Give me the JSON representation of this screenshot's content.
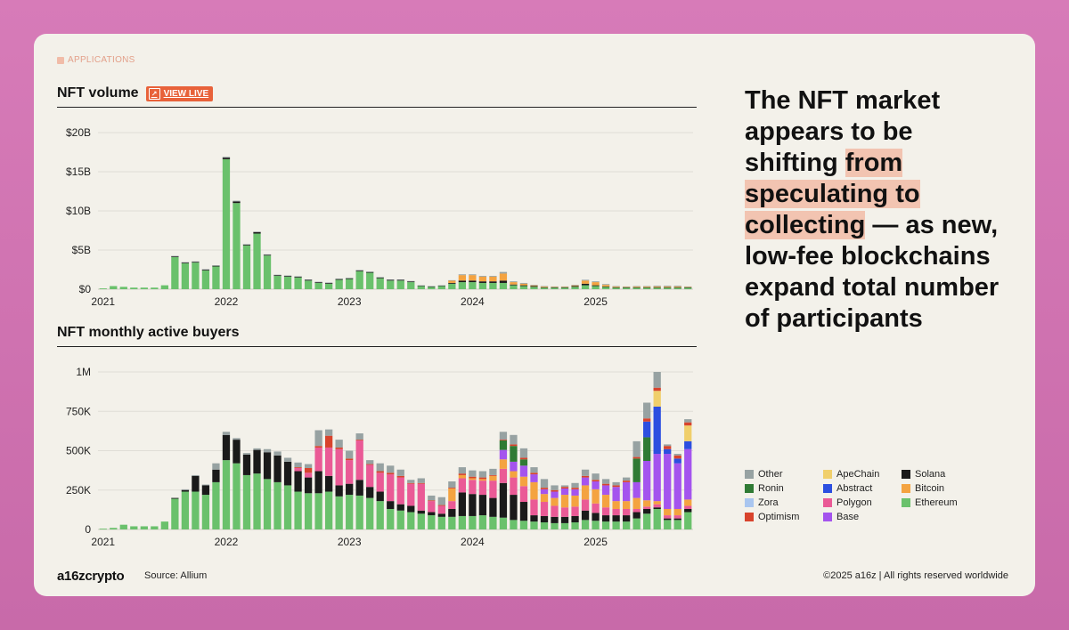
{
  "section_tag": "APPLICATIONS",
  "headline": {
    "part1": "The NFT market appears to be shifting ",
    "highlight": "from speculating to collecting",
    "part2": " — as new, low-fee blockchains expand total number of participants"
  },
  "footer": {
    "logo": "a16zcrypto",
    "source": "Source: Allium",
    "copyright": "©2025 a16z | All rights reserved worldwide"
  },
  "view_live": "VIEW LIVE",
  "legend": [
    {
      "name": "Other",
      "color": "#97a2a2"
    },
    {
      "name": "ApeChain",
      "color": "#f0cf6b"
    },
    {
      "name": "Solana",
      "color": "#1a1a1a"
    },
    {
      "name": "Ronin",
      "color": "#2f7a34"
    },
    {
      "name": "Abstract",
      "color": "#2c4fe0"
    },
    {
      "name": "Bitcoin",
      "color": "#f4a340"
    },
    {
      "name": "Zora",
      "color": "#a9c6f0"
    },
    {
      "name": "Polygon",
      "color": "#ea5a96"
    },
    {
      "name": "Ethereum",
      "color": "#6ac16c"
    },
    {
      "name": "Optimism",
      "color": "#d8432c"
    },
    {
      "name": "Base",
      "color": "#a454ee"
    }
  ],
  "chart_data": [
    {
      "type": "bar",
      "stacked": true,
      "title": "NFT volume",
      "ylabel": "",
      "yticks": [
        "$0",
        "$5B",
        "$10B",
        "$15B",
        "$20B"
      ],
      "ylim": [
        0,
        20
      ],
      "xticks": [
        "2021",
        "2022",
        "2023",
        "2024",
        "2025"
      ],
      "categories": [
        "2021-01",
        "2021-02",
        "2021-03",
        "2021-04",
        "2021-05",
        "2021-06",
        "2021-07",
        "2021-08",
        "2021-09",
        "2021-10",
        "2021-11",
        "2021-12",
        "2022-01",
        "2022-02",
        "2022-03",
        "2022-04",
        "2022-05",
        "2022-06",
        "2022-07",
        "2022-08",
        "2022-09",
        "2022-10",
        "2022-11",
        "2022-12",
        "2023-01",
        "2023-02",
        "2023-03",
        "2023-04",
        "2023-05",
        "2023-06",
        "2023-07",
        "2023-08",
        "2023-09",
        "2023-10",
        "2023-11",
        "2023-12",
        "2024-01",
        "2024-02",
        "2024-03",
        "2024-04",
        "2024-05",
        "2024-06",
        "2024-07",
        "2024-08",
        "2024-09",
        "2024-10",
        "2024-11",
        "2024-12",
        "2025-01",
        "2025-02",
        "2025-03",
        "2025-04",
        "2025-05",
        "2025-06",
        "2025-07",
        "2025-08",
        "2025-09",
        "2025-10"
      ],
      "series": [
        {
          "name": "Ethereum",
          "values": [
            0.1,
            0.4,
            0.3,
            0.2,
            0.2,
            0.2,
            0.5,
            4.1,
            3.3,
            3.4,
            2.4,
            2.9,
            16.6,
            11.0,
            5.6,
            7.1,
            4.3,
            1.7,
            1.6,
            1.5,
            1.1,
            0.8,
            0.7,
            1.2,
            1.3,
            2.3,
            2.1,
            1.4,
            1.1,
            1.1,
            0.9,
            0.4,
            0.3,
            0.4,
            0.7,
            0.9,
            0.9,
            0.8,
            0.8,
            0.8,
            0.5,
            0.4,
            0.3,
            0.2,
            0.2,
            0.2,
            0.3,
            0.5,
            0.4,
            0.3,
            0.2,
            0.2,
            0.2,
            0.2,
            0.2,
            0.2,
            0.2,
            0.2
          ]
        },
        {
          "name": "Solana",
          "values": [
            0,
            0,
            0,
            0,
            0,
            0,
            0,
            0.1,
            0.1,
            0.1,
            0.1,
            0.1,
            0.2,
            0.2,
            0.1,
            0.2,
            0.1,
            0.1,
            0.1,
            0.1,
            0.1,
            0.1,
            0.1,
            0.1,
            0.1,
            0.1,
            0.1,
            0.1,
            0.1,
            0.1,
            0.1,
            0.05,
            0.05,
            0.05,
            0.1,
            0.2,
            0.2,
            0.2,
            0.2,
            0.3,
            0.1,
            0.1,
            0.1,
            0.05,
            0.05,
            0.05,
            0.1,
            0.2,
            0.1,
            0.05,
            0.05,
            0.05,
            0.05,
            0.05,
            0.05,
            0.05,
            0.05,
            0.05
          ]
        },
        {
          "name": "Bitcoin",
          "values": [
            0,
            0,
            0,
            0,
            0,
            0,
            0,
            0,
            0,
            0,
            0,
            0,
            0,
            0,
            0,
            0,
            0,
            0,
            0,
            0,
            0,
            0,
            0,
            0,
            0,
            0,
            0,
            0,
            0,
            0,
            0,
            0,
            0,
            0,
            0.3,
            0.7,
            0.7,
            0.6,
            0.6,
            0.9,
            0.3,
            0.2,
            0.1,
            0.1,
            0.05,
            0.05,
            0.1,
            0.4,
            0.4,
            0.2,
            0.1,
            0.05,
            0.1,
            0.1,
            0.1,
            0.1,
            0.1,
            0.05
          ]
        },
        {
          "name": "Other",
          "values": [
            0,
            0,
            0,
            0,
            0,
            0,
            0,
            0.05,
            0.05,
            0.05,
            0.05,
            0.05,
            0.1,
            0.1,
            0.05,
            0.05,
            0.05,
            0.05,
            0.05,
            0.05,
            0.05,
            0.05,
            0.05,
            0.05,
            0.05,
            0.05,
            0.05,
            0.05,
            0.05,
            0.05,
            0.05,
            0.05,
            0.05,
            0.05,
            0.05,
            0.1,
            0.1,
            0.1,
            0.1,
            0.2,
            0.1,
            0.1,
            0.05,
            0.05,
            0.05,
            0.05,
            0.05,
            0.1,
            0.1,
            0.1,
            0.05,
            0.05,
            0.05,
            0.05,
            0.1,
            0.1,
            0.1,
            0.05
          ]
        }
      ]
    },
    {
      "type": "bar",
      "stacked": true,
      "title": "NFT monthly active buyers",
      "ylabel": "",
      "yticks": [
        "0",
        "250K",
        "500K",
        "750K",
        "1M"
      ],
      "ylim": [
        0,
        1000
      ],
      "xticks": [
        "2021",
        "2022",
        "2023",
        "2024",
        "2025"
      ],
      "categories": [
        "2021-01",
        "2021-02",
        "2021-03",
        "2021-04",
        "2021-05",
        "2021-06",
        "2021-07",
        "2021-08",
        "2021-09",
        "2021-10",
        "2021-11",
        "2021-12",
        "2022-01",
        "2022-02",
        "2022-03",
        "2022-04",
        "2022-05",
        "2022-06",
        "2022-07",
        "2022-08",
        "2022-09",
        "2022-10",
        "2022-11",
        "2022-12",
        "2023-01",
        "2023-02",
        "2023-03",
        "2023-04",
        "2023-05",
        "2023-06",
        "2023-07",
        "2023-08",
        "2023-09",
        "2023-10",
        "2023-11",
        "2023-12",
        "2024-01",
        "2024-02",
        "2024-03",
        "2024-04",
        "2024-05",
        "2024-06",
        "2024-07",
        "2024-08",
        "2024-09",
        "2024-10",
        "2024-11",
        "2024-12",
        "2025-01",
        "2025-02",
        "2025-03",
        "2025-04",
        "2025-05",
        "2025-06",
        "2025-07",
        "2025-08",
        "2025-09",
        "2025-10"
      ],
      "series": [
        {
          "name": "Ethereum",
          "values": [
            5,
            10,
            30,
            20,
            20,
            20,
            50,
            195,
            240,
            240,
            220,
            300,
            440,
            420,
            345,
            355,
            320,
            300,
            280,
            240,
            230,
            230,
            240,
            210,
            220,
            215,
            200,
            180,
            130,
            120,
            110,
            100,
            90,
            80,
            80,
            85,
            85,
            90,
            80,
            75,
            60,
            55,
            50,
            45,
            40,
            40,
            45,
            60,
            55,
            50,
            50,
            50,
            70,
            100,
            130,
            60,
            60,
            110
          ]
        },
        {
          "name": "Solana",
          "values": [
            0,
            0,
            0,
            0,
            0,
            0,
            0,
            5,
            10,
            100,
            60,
            80,
            160,
            150,
            130,
            150,
            170,
            170,
            150,
            130,
            100,
            140,
            100,
            70,
            70,
            100,
            70,
            60,
            50,
            40,
            40,
            20,
            20,
            20,
            50,
            150,
            140,
            130,
            120,
            220,
            160,
            120,
            40,
            40,
            40,
            40,
            40,
            60,
            50,
            40,
            40,
            40,
            40,
            30,
            10,
            10,
            10,
            20
          ]
        },
        {
          "name": "Polygon",
          "values": [
            0,
            0,
            0,
            0,
            0,
            0,
            0,
            0,
            0,
            0,
            0,
            0,
            0,
            0,
            0,
            0,
            0,
            0,
            0,
            20,
            30,
            150,
            180,
            230,
            150,
            250,
            140,
            120,
            170,
            170,
            140,
            170,
            70,
            50,
            50,
            90,
            90,
            90,
            110,
            90,
            110,
            100,
            100,
            90,
            70,
            60,
            60,
            70,
            60,
            50,
            40,
            40,
            20,
            15,
            20,
            20,
            20,
            20
          ]
        },
        {
          "name": "Bitcoin",
          "values": [
            0,
            0,
            0,
            0,
            0,
            0,
            0,
            0,
            0,
            0,
            0,
            0,
            0,
            0,
            0,
            0,
            0,
            0,
            0,
            0,
            0,
            0,
            0,
            0,
            0,
            0,
            0,
            0,
            0,
            0,
            0,
            0,
            0,
            0,
            80,
            20,
            10,
            10,
            30,
            60,
            40,
            60,
            110,
            50,
            50,
            80,
            70,
            90,
            90,
            80,
            50,
            50,
            70,
            40,
            20,
            40,
            40,
            40
          ]
        },
        {
          "name": "Base",
          "values": [
            0,
            0,
            0,
            0,
            0,
            0,
            0,
            0,
            0,
            0,
            0,
            0,
            0,
            0,
            0,
            0,
            0,
            0,
            0,
            0,
            0,
            0,
            0,
            0,
            0,
            0,
            0,
            0,
            0,
            0,
            0,
            0,
            0,
            0,
            0,
            0,
            0,
            0,
            0,
            60,
            60,
            70,
            50,
            30,
            40,
            40,
            40,
            50,
            50,
            60,
            90,
            120,
            100,
            250,
            300,
            350,
            290,
            320
          ]
        },
        {
          "name": "Ronin",
          "values": [
            0,
            0,
            0,
            0,
            0,
            0,
            0,
            0,
            0,
            0,
            0,
            0,
            0,
            0,
            0,
            0,
            0,
            0,
            0,
            0,
            0,
            0,
            0,
            0,
            0,
            0,
            0,
            0,
            0,
            0,
            0,
            0,
            0,
            0,
            0,
            0,
            0,
            0,
            0,
            60,
            100,
            40,
            0,
            0,
            0,
            0,
            0,
            0,
            0,
            0,
            0,
            0,
            150,
            150,
            0,
            0,
            0,
            0
          ]
        },
        {
          "name": "Abstract",
          "values": [
            0,
            0,
            0,
            0,
            0,
            0,
            0,
            0,
            0,
            0,
            0,
            0,
            0,
            0,
            0,
            0,
            0,
            0,
            0,
            0,
            0,
            0,
            0,
            0,
            0,
            0,
            0,
            0,
            0,
            0,
            0,
            0,
            0,
            0,
            0,
            0,
            0,
            0,
            0,
            0,
            0,
            0,
            0,
            0,
            0,
            0,
            0,
            0,
            0,
            0,
            0,
            0,
            0,
            100,
            300,
            30,
            30,
            50
          ]
        },
        {
          "name": "ApeChain",
          "values": [
            0,
            0,
            0,
            0,
            0,
            0,
            0,
            0,
            0,
            0,
            0,
            0,
            0,
            0,
            0,
            0,
            0,
            0,
            0,
            0,
            0,
            0,
            0,
            0,
            0,
            0,
            0,
            0,
            0,
            0,
            0,
            0,
            0,
            0,
            0,
            0,
            0,
            0,
            0,
            0,
            0,
            0,
            0,
            0,
            0,
            0,
            0,
            0,
            0,
            0,
            0,
            0,
            0,
            0,
            100,
            0,
            0,
            100
          ]
        },
        {
          "name": "Optimism",
          "values": [
            0,
            0,
            0,
            0,
            0,
            0,
            0,
            0,
            0,
            0,
            0,
            0,
            0,
            0,
            0,
            0,
            0,
            0,
            0,
            5,
            30,
            10,
            75,
            10,
            10,
            5,
            5,
            10,
            10,
            10,
            5,
            5,
            5,
            5,
            5,
            10,
            10,
            10,
            5,
            5,
            10,
            10,
            10,
            10,
            10,
            10,
            10,
            10,
            10,
            10,
            10,
            10,
            10,
            20,
            20,
            20,
            20,
            20
          ]
        },
        {
          "name": "Other",
          "values": [
            0,
            0,
            0,
            0,
            0,
            0,
            0,
            0,
            5,
            5,
            5,
            40,
            20,
            10,
            10,
            10,
            20,
            25,
            25,
            30,
            25,
            100,
            40,
            50,
            50,
            40,
            25,
            50,
            45,
            40,
            20,
            30,
            30,
            50,
            40,
            40,
            40,
            40,
            40,
            50,
            60,
            60,
            35,
            55,
            30,
            10,
            30,
            40,
            40,
            30,
            20,
            20,
            100,
            100,
            100,
            10,
            10,
            20
          ]
        }
      ]
    }
  ]
}
